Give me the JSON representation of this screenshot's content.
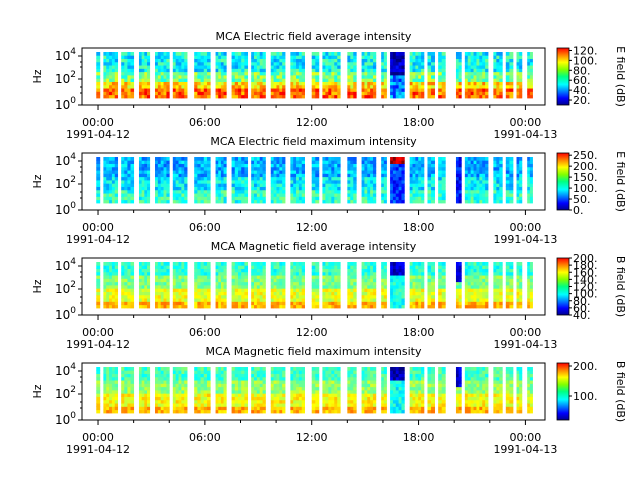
{
  "chart_data": [
    {
      "type": "heatmap",
      "title": "MCA  Electric field average intensity",
      "ylabel": "Hz",
      "yscale": "log",
      "ylim": [
        1,
        30000
      ],
      "y_ticks": [
        "10^0",
        "10^2",
        "10^4"
      ],
      "x_ticks": [
        "00:00",
        "06:00",
        "12:00",
        "18:00",
        "00:00"
      ],
      "x_dates": [
        "1991-04-12",
        "1991-04-13"
      ],
      "colorbar": {
        "label": "E field (dB)",
        "range": [
          10,
          125
        ],
        "ticks": [
          "20.",
          "40.",
          "60.",
          "80.",
          "100.",
          "120."
        ]
      },
      "colormap": "jet"
    },
    {
      "type": "heatmap",
      "title": "MCA  Electric field maximum intensity",
      "ylabel": "Hz",
      "yscale": "log",
      "ylim": [
        1,
        30000
      ],
      "y_ticks": [
        "10^0",
        "10^2",
        "10^4"
      ],
      "x_ticks": [
        "00:00",
        "06:00",
        "12:00",
        "18:00",
        "00:00"
      ],
      "x_dates": [
        "1991-04-12",
        "1991-04-13"
      ],
      "colorbar": {
        "label": "E field (dB)",
        "range": [
          0,
          260
        ],
        "ticks": [
          "0.",
          "50.",
          "100.",
          "150.",
          "200.",
          "250."
        ]
      },
      "colormap": "jet"
    },
    {
      "type": "heatmap",
      "title": "MCA  Magnetic field average intensity",
      "ylabel": "Hz",
      "yscale": "log",
      "ylim": [
        1,
        30000
      ],
      "y_ticks": [
        "10^0",
        "10^2",
        "10^4"
      ],
      "x_ticks": [
        "00:00",
        "06:00",
        "12:00",
        "18:00",
        "00:00"
      ],
      "x_dates": [
        "1991-04-12",
        "1991-04-13"
      ],
      "colorbar": {
        "label": "B field (dB)",
        "range": [
          40,
          200
        ],
        "ticks": [
          "40.",
          "60.",
          "80.",
          "100.",
          "120.",
          "140.",
          "160.",
          "180.",
          "200."
        ]
      },
      "colormap": "jet"
    },
    {
      "type": "heatmap",
      "title": "MCA  Magnetic field maximum intensity",
      "ylabel": "Hz",
      "yscale": "log",
      "ylim": [
        1,
        30000
      ],
      "y_ticks": [
        "10^0",
        "10^2",
        "10^4"
      ],
      "x_ticks": [
        "00:00",
        "06:00",
        "12:00",
        "18:00",
        "00:00"
      ],
      "x_dates": [
        "1991-04-12",
        "1991-04-13"
      ],
      "colorbar": {
        "label": "B field (dB)",
        "range": [
          20,
          210
        ],
        "ticks": [
          "100.",
          "200."
        ]
      },
      "colormap": "jet"
    }
  ],
  "data_segments_hours": [
    [
      -0.1,
      0.1
    ],
    [
      0.3,
      1.1
    ],
    [
      1.3,
      2.0
    ],
    [
      2.3,
      2.9
    ],
    [
      3.2,
      4.0
    ],
    [
      4.2,
      5.0
    ],
    [
      5.4,
      6.3
    ],
    [
      6.6,
      7.2
    ],
    [
      7.5,
      8.4
    ],
    [
      8.6,
      9.4
    ],
    [
      9.7,
      10.5
    ],
    [
      10.8,
      11.6
    ],
    [
      12.0,
      12.4
    ],
    [
      12.6,
      13.6
    ],
    [
      14.0,
      14.5
    ],
    [
      14.8,
      15.6
    ],
    [
      15.9,
      16.2
    ],
    [
      16.4,
      17.2
    ],
    [
      17.5,
      18.3
    ],
    [
      18.5,
      18.9
    ],
    [
      19.1,
      19.5
    ],
    [
      20.1,
      20.4
    ],
    [
      20.6,
      21.9
    ],
    [
      22.2,
      22.7
    ],
    [
      22.9,
      23.3
    ],
    [
      23.5,
      23.8
    ],
    [
      24.1,
      24.4
    ]
  ]
}
